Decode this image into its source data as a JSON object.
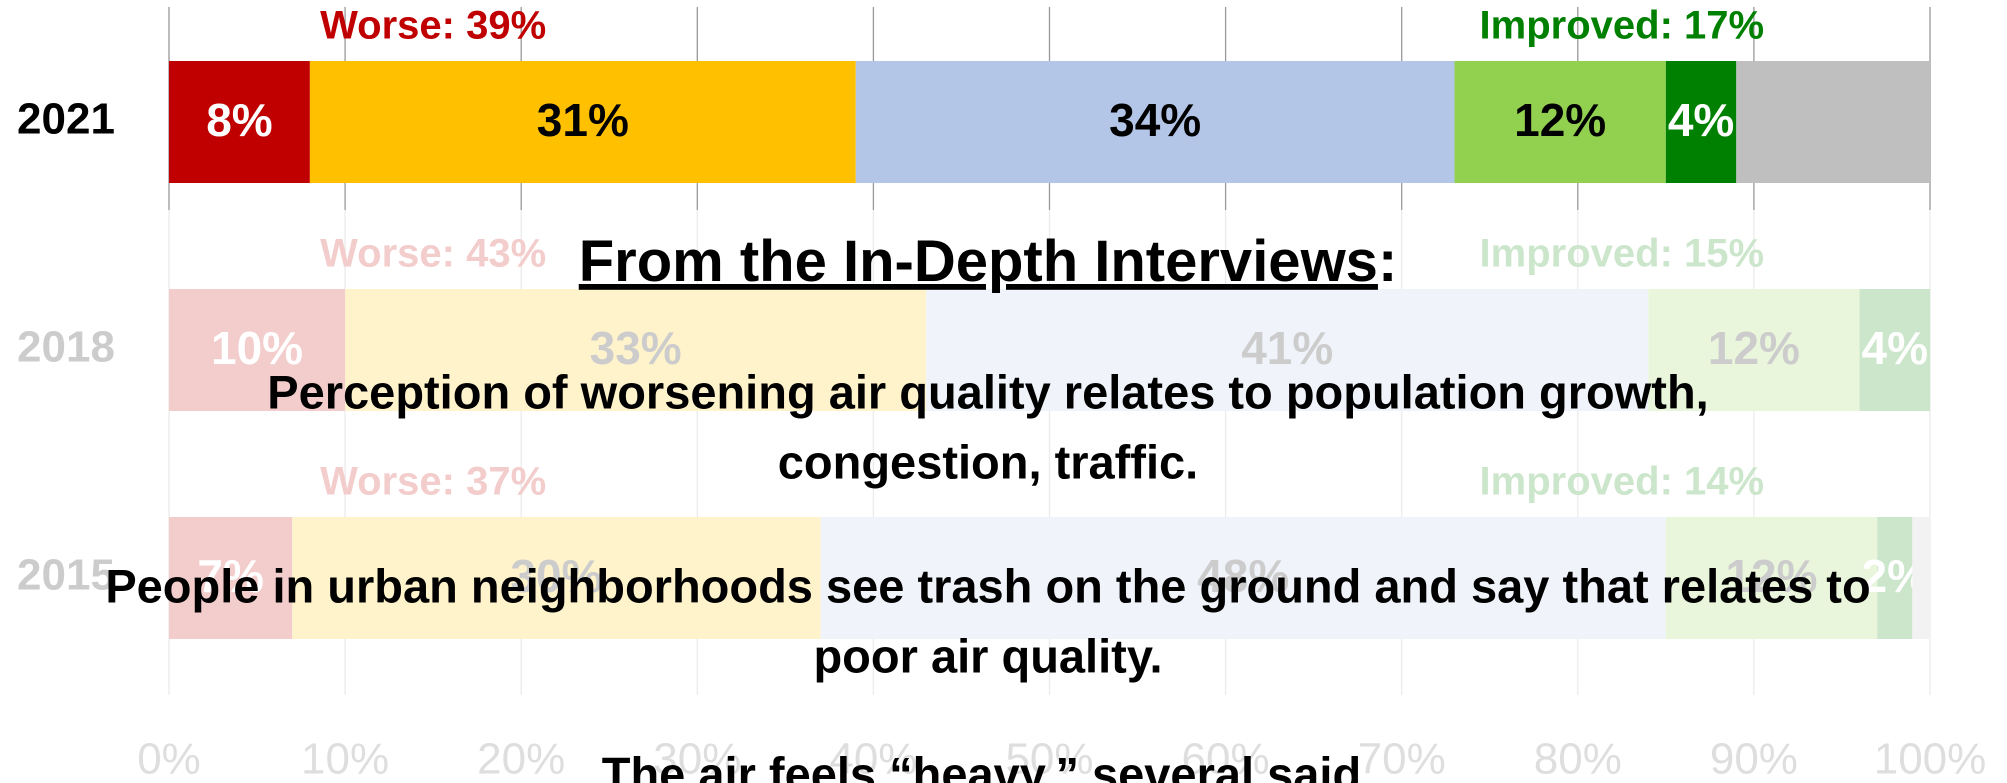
{
  "chart_data": {
    "type": "stacked-bar-horizontal",
    "categories": [
      "2021",
      "2018",
      "2015"
    ],
    "series": [
      {
        "color": "#c00000",
        "label_color": "#ffffff",
        "values": [
          8,
          10,
          7
        ],
        "value_labels": [
          "8%",
          "10%",
          "7%"
        ]
      },
      {
        "color": "#ffc000",
        "label_color": "#000000",
        "values": [
          31,
          33,
          30
        ],
        "value_labels": [
          "31%",
          "33%",
          "30%"
        ]
      },
      {
        "color": "#b4c6e7",
        "label_color": "#000000",
        "values": [
          34,
          41,
          48
        ],
        "value_labels": [
          "34%",
          "41%",
          "48%"
        ]
      },
      {
        "color": "#92d050",
        "label_color": "#000000",
        "values": [
          12,
          12,
          12
        ],
        "value_labels": [
          "12%",
          "12%",
          "12%"
        ]
      },
      {
        "color": "#008000",
        "label_color": "#ffffff",
        "values": [
          4,
          4,
          2
        ],
        "value_labels": [
          "4%",
          "4%",
          "2%"
        ]
      },
      {
        "color": "#bfbfbf",
        "label_color": "#000000",
        "values": [
          11,
          0,
          1
        ],
        "value_labels": [
          null,
          null,
          null
        ]
      }
    ],
    "worse_labels": [
      "Worse: 39%",
      "Worse: 43%",
      "Worse: 37%"
    ],
    "worse_color": "#c00000",
    "improved_labels": [
      "Improved: 17%",
      "Improved: 15%",
      "Improved: 14%"
    ],
    "improved_color": "#008000",
    "xlim": [
      0,
      100
    ],
    "xticks": [
      {
        "value": 0,
        "label": "0%"
      },
      {
        "value": 10,
        "label": "10%"
      },
      {
        "value": 20,
        "label": "20%"
      },
      {
        "value": 30,
        "label": "30%"
      },
      {
        "value": 40,
        "label": "40%"
      },
      {
        "value": 50,
        "label": "50%"
      },
      {
        "value": 60,
        "label": "60%"
      },
      {
        "value": 70,
        "label": "70%"
      },
      {
        "value": 80,
        "label": "80%"
      },
      {
        "value": 90,
        "label": "90%"
      },
      {
        "value": 100,
        "label": "100%"
      }
    ],
    "grid": true
  },
  "overlay": {
    "title": "From the In-Depth Interviews",
    "title_suffix": ":",
    "paragraphs": [
      [
        "Perception of worsening air quality relates to population growth,",
        "congestion, traffic."
      ],
      [
        "People in urban neighborhoods see trash on the ground and say that relates to",
        "poor air quality."
      ],
      [
        "The air feels “heavy,” several said."
      ]
    ]
  }
}
